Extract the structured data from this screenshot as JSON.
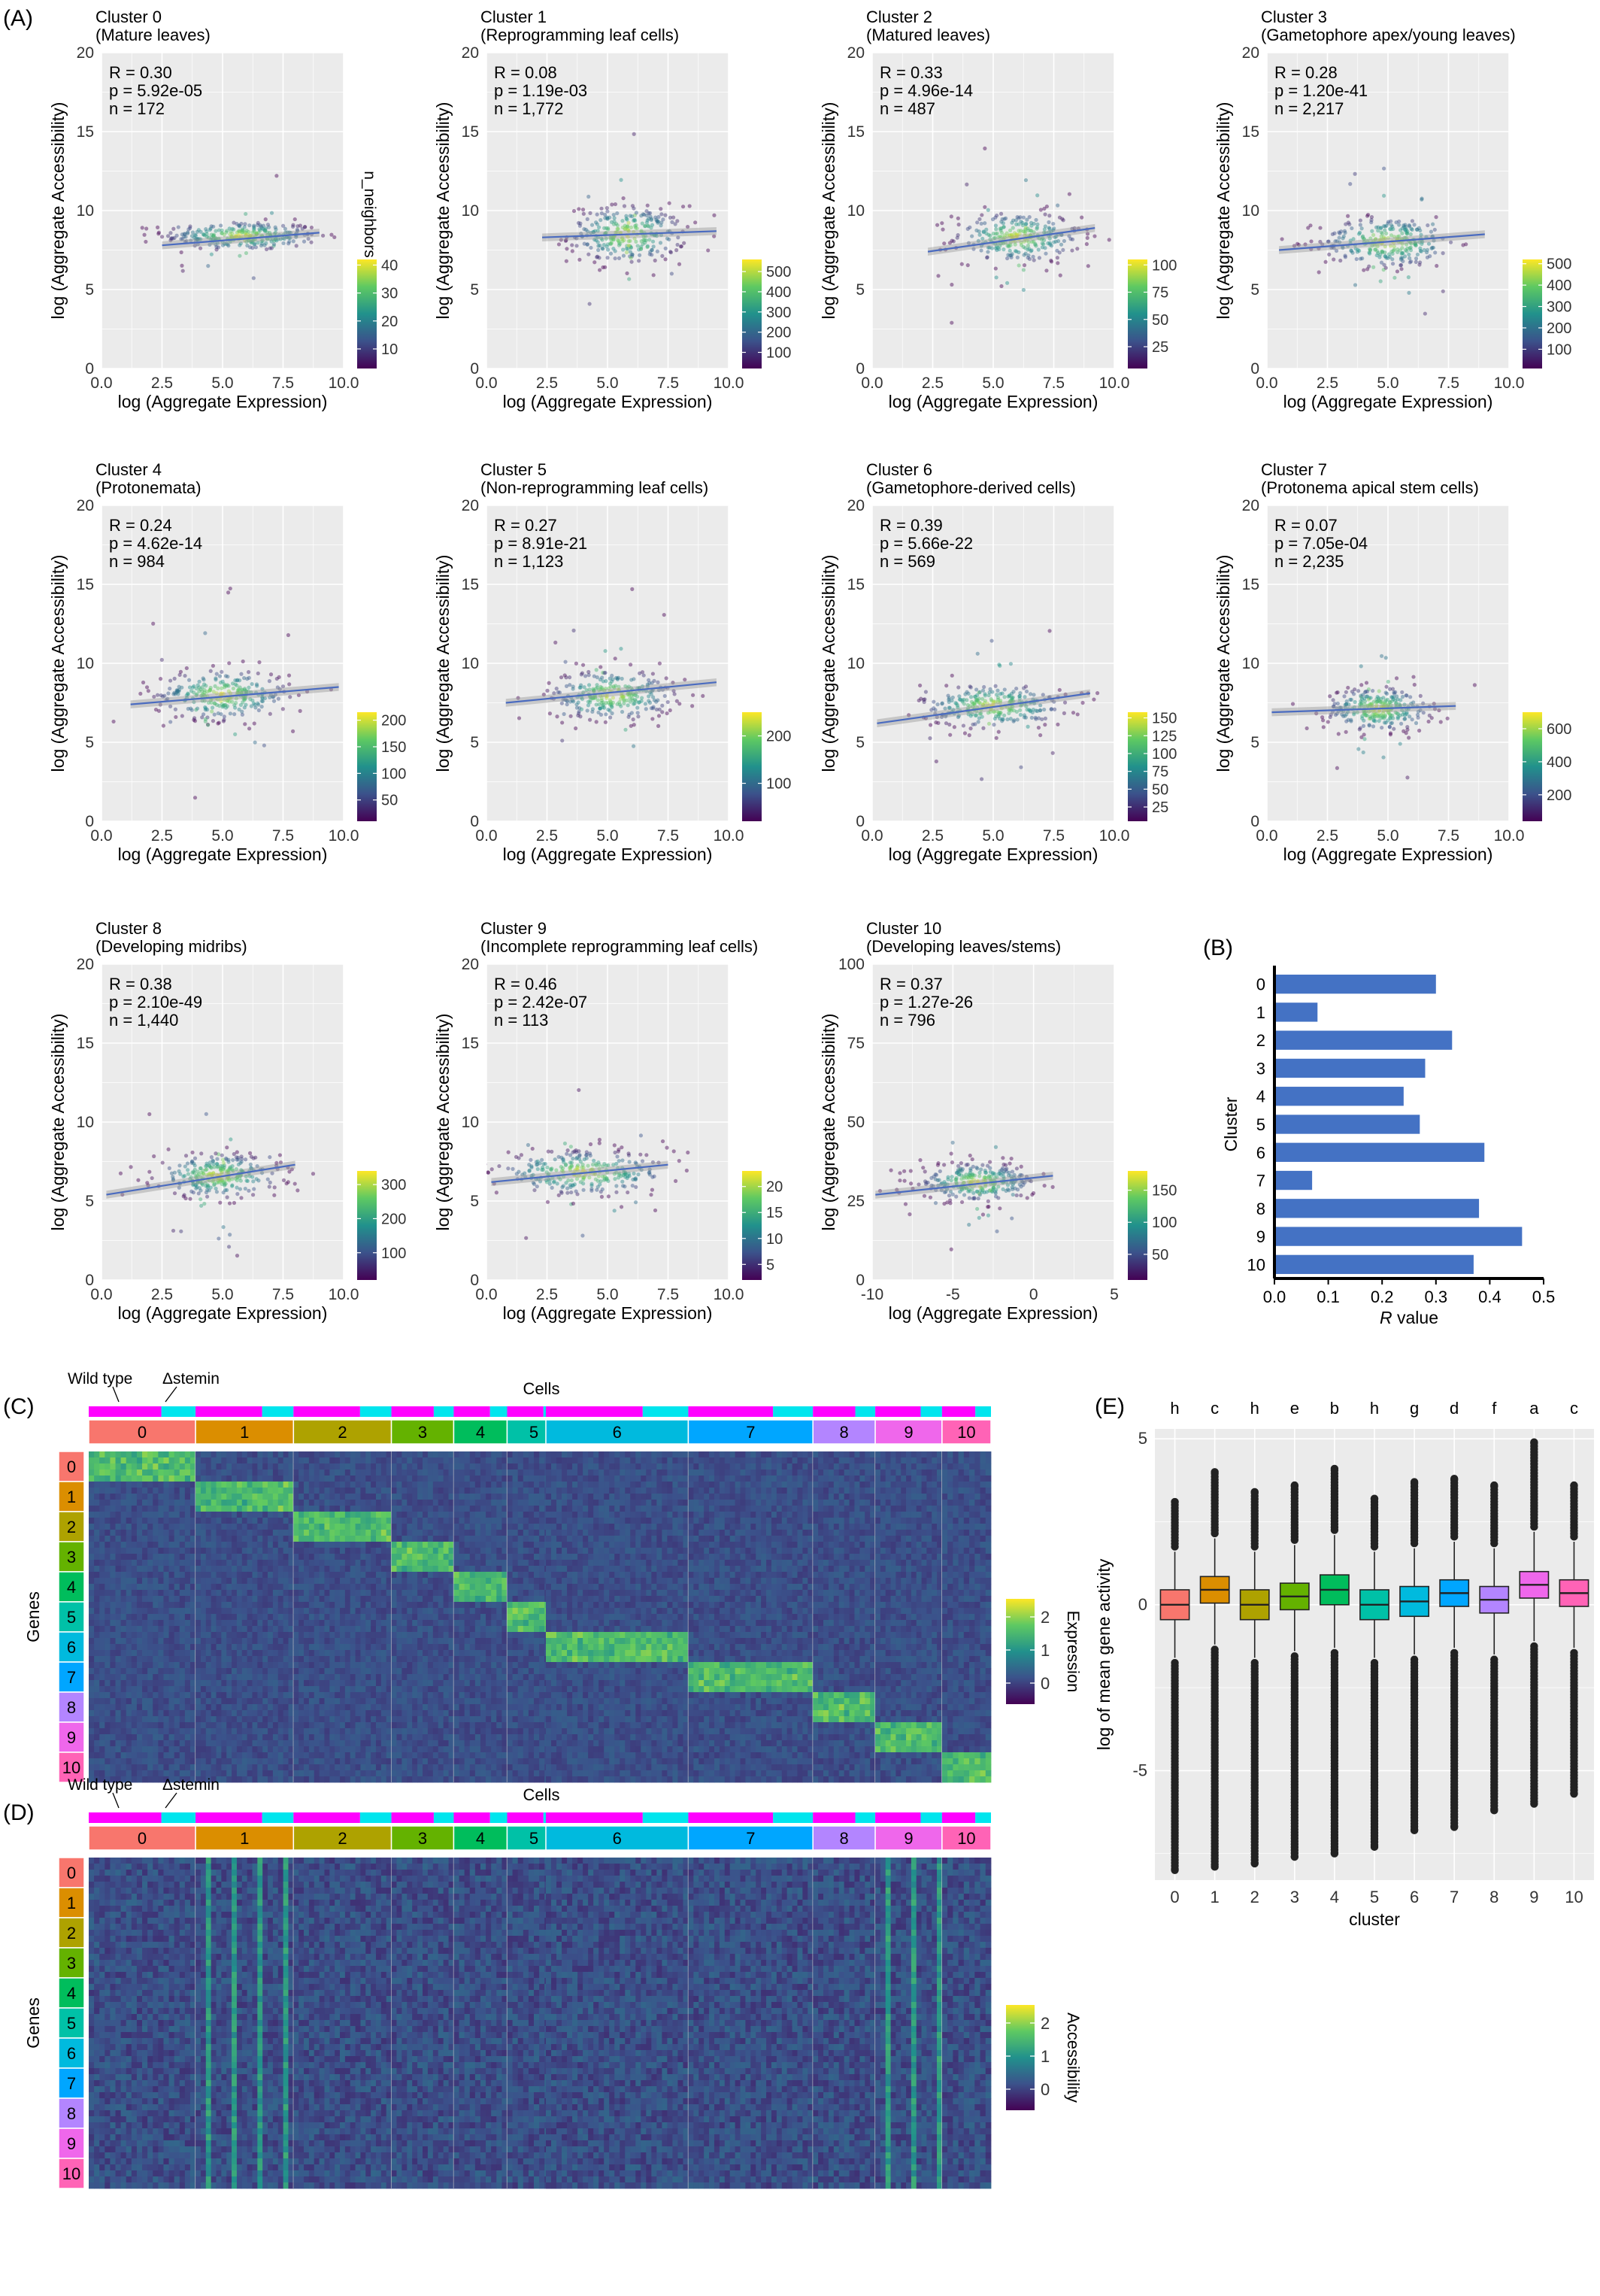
{
  "panel_labels": {
    "A": "(A)",
    "B": "(B)",
    "C": "(C)",
    "D": "(D)",
    "E": "(E)"
  },
  "colors": {
    "panel_bg": "#ebebeb",
    "grid": "#ffffff",
    "reg_line": "#4a6bc0",
    "bar": "#4472c4",
    "heat_low": "#440154",
    "heat_mid": "#21918c",
    "heat_high": "#fde725",
    "wt": "#ff00ff",
    "stemin": "#00e5ee",
    "cluster_colors": [
      "#f8766d",
      "#db8e00",
      "#aea200",
      "#64b200",
      "#00bd5c",
      "#00c1a7",
      "#00bade",
      "#00a6ff",
      "#b385ff",
      "#ef67eb",
      "#ff63b6"
    ]
  },
  "scatter": {
    "x_label": "log (Aggregate Expression)",
    "y_label": "log (Aggregate Accessibility)",
    "legend_title": "n_neighbors",
    "panels": [
      {
        "title": "Cluster 0",
        "subtitle": "(Mature leaves)",
        "r": "R = 0.30",
        "p": "p = 5.92e-05",
        "n": "n = 172",
        "xlim": [
          0,
          10
        ],
        "ylim": [
          0,
          20
        ],
        "xticks": [
          "0.0",
          "2.5",
          "5.0",
          "7.5",
          "10.0"
        ],
        "yticks": [
          "0",
          "5",
          "10",
          "15",
          "20"
        ],
        "legend_ticks": [
          "10",
          "20",
          "30",
          "40"
        ],
        "legend_range": [
          3,
          42
        ],
        "line": [
          [
            2.5,
            7.8
          ],
          [
            9,
            8.6
          ]
        ],
        "center": [
          5.8,
          8.4
        ],
        "spread": [
          1.6,
          0.45
        ],
        "show_legend_title": true
      },
      {
        "title": "Cluster 1",
        "subtitle": "(Reprogramming leaf cells)",
        "r": "R = 0.08",
        "p": "p = 1.19e-03",
        "n": "n = 1,772",
        "xlim": [
          0,
          10
        ],
        "ylim": [
          0,
          20
        ],
        "xticks": [
          "0.0",
          "2.5",
          "5.0",
          "7.5",
          "10.0"
        ],
        "yticks": [
          "0",
          "5",
          "10",
          "15",
          "20"
        ],
        "legend_ticks": [
          "100",
          "200",
          "300",
          "400",
          "500"
        ],
        "legend_range": [
          20,
          560
        ],
        "line": [
          [
            2.3,
            8.3
          ],
          [
            9.5,
            8.7
          ]
        ],
        "center": [
          5.8,
          8.5
        ],
        "spread": [
          1.2,
          0.9
        ],
        "show_legend_title": false
      },
      {
        "title": "Cluster 2",
        "subtitle": "(Matured leaves)",
        "r": "R = 0.33",
        "p": "p = 4.96e-14",
        "n": "n = 487",
        "xlim": [
          0,
          10
        ],
        "ylim": [
          0,
          20
        ],
        "xticks": [
          "0.0",
          "2.5",
          "5.0",
          "7.5",
          "10.0"
        ],
        "yticks": [
          "0",
          "5",
          "10",
          "15",
          "20"
        ],
        "legend_ticks": [
          "25",
          "50",
          "75",
          "100"
        ],
        "legend_range": [
          5,
          105
        ],
        "line": [
          [
            2.3,
            7.4
          ],
          [
            9.2,
            8.9
          ]
        ],
        "center": [
          6,
          8.3
        ],
        "spread": [
          1.3,
          0.8
        ],
        "show_legend_title": false
      },
      {
        "title": "Cluster 3",
        "subtitle": "(Gametophore apex/young leaves)",
        "r": "R = 0.28",
        "p": "p = 1.20e-41",
        "n": "n = 2,217",
        "xlim": [
          0,
          10
        ],
        "ylim": [
          0,
          20
        ],
        "xticks": [
          "0.0",
          "2.5",
          "5.0",
          "7.5",
          "10.0"
        ],
        "yticks": [
          "0",
          "5",
          "10",
          "15",
          "20"
        ],
        "legend_ticks": [
          "100",
          "200",
          "300",
          "400",
          "500"
        ],
        "legend_range": [
          10,
          520
        ],
        "line": [
          [
            0.5,
            7.5
          ],
          [
            9,
            8.5
          ]
        ],
        "center": [
          5,
          8
        ],
        "spread": [
          1.4,
          0.8
        ],
        "show_legend_title": false
      },
      {
        "title": "Cluster 4",
        "subtitle": "(Protonemata)",
        "r": "R = 0.24",
        "p": "p = 4.62e-14",
        "n": "n = 984",
        "xlim": [
          0,
          10
        ],
        "ylim": [
          0,
          20
        ],
        "xticks": [
          "0.0",
          "2.5",
          "5.0",
          "7.5",
          "10.0"
        ],
        "yticks": [
          "0",
          "5",
          "10",
          "15",
          "20"
        ],
        "legend_ticks": [
          "50",
          "100",
          "150",
          "200"
        ],
        "legend_range": [
          10,
          215
        ],
        "line": [
          [
            1.2,
            7.4
          ],
          [
            9.8,
            8.5
          ]
        ],
        "center": [
          5,
          8
        ],
        "spread": [
          1.4,
          0.8
        ],
        "show_legend_title": false
      },
      {
        "title": "Cluster 5",
        "subtitle": "(Non-reprogramming leaf cells)",
        "r": "R = 0.27",
        "p": "p = 8.91e-21",
        "n": "n = 1,123",
        "xlim": [
          0,
          10
        ],
        "ylim": [
          0,
          20
        ],
        "xticks": [
          "0.0",
          "2.5",
          "5.0",
          "7.5",
          "10.0"
        ],
        "yticks": [
          "0",
          "5",
          "10",
          "15",
          "20"
        ],
        "legend_ticks": [
          "100",
          "200"
        ],
        "legend_range": [
          20,
          250
        ],
        "line": [
          [
            0.8,
            7.5
          ],
          [
            9.5,
            8.8
          ]
        ],
        "center": [
          5.2,
          8
        ],
        "spread": [
          1.3,
          0.8
        ],
        "show_legend_title": false
      },
      {
        "title": "Cluster 6",
        "subtitle": "(Gametophore-derived cells)",
        "r": "R = 0.39",
        "p": "p = 5.66e-22",
        "n": "n = 569",
        "xlim": [
          0,
          10
        ],
        "ylim": [
          0,
          20
        ],
        "xticks": [
          "0.0",
          "2.5",
          "5.0",
          "7.5",
          "10.0"
        ],
        "yticks": [
          "0",
          "5",
          "10",
          "15",
          "20"
        ],
        "legend_ticks": [
          "25",
          "50",
          "75",
          "100",
          "125",
          "150"
        ],
        "legend_range": [
          5,
          158
        ],
        "line": [
          [
            0.2,
            6.2
          ],
          [
            9,
            8.1
          ]
        ],
        "center": [
          5,
          7.3
        ],
        "spread": [
          1.5,
          0.7
        ],
        "show_legend_title": false
      },
      {
        "title": "Cluster 7",
        "subtitle": "(Protonema apical stem cells)",
        "r": "R = 0.07",
        "p": "p = 7.05e-04",
        "n": "n = 2,235",
        "xlim": [
          0,
          10
        ],
        "ylim": [
          0,
          20
        ],
        "xticks": [
          "0.0",
          "2.5",
          "5.0",
          "7.5",
          "10.0"
        ],
        "yticks": [
          "0",
          "5",
          "10",
          "15",
          "20"
        ],
        "legend_ticks": [
          "200",
          "400",
          "600"
        ],
        "legend_range": [
          40,
          700
        ],
        "line": [
          [
            0.2,
            6.9
          ],
          [
            7.8,
            7.3
          ]
        ],
        "center": [
          4.6,
          7.1
        ],
        "spread": [
          1.1,
          0.7
        ],
        "show_legend_title": false
      },
      {
        "title": "Cluster 8",
        "subtitle": "(Developing midribs)",
        "r": "R = 0.38",
        "p": "p = 2.10e-49",
        "n": "n = 1,440",
        "xlim": [
          0,
          10
        ],
        "ylim": [
          0,
          20
        ],
        "xticks": [
          "0.0",
          "2.5",
          "5.0",
          "7.5",
          "10.0"
        ],
        "yticks": [
          "0",
          "5",
          "10",
          "15",
          "20"
        ],
        "legend_ticks": [
          "100",
          "200",
          "300"
        ],
        "legend_range": [
          20,
          340
        ],
        "line": [
          [
            0.2,
            5.4
          ],
          [
            8,
            7.3
          ]
        ],
        "center": [
          4.8,
          6.6
        ],
        "spread": [
          1.3,
          0.7
        ],
        "show_legend_title": false
      },
      {
        "title": "Cluster 9",
        "subtitle": "(Incomplete reprogramming leaf cells)",
        "r": "R = 0.46",
        "p": "p = 2.42e-07",
        "n": "n = 113",
        "xlim": [
          0,
          10
        ],
        "ylim": [
          0,
          20
        ],
        "xticks": [
          "0.0",
          "2.5",
          "5.0",
          "7.5",
          "10.0"
        ],
        "yticks": [
          "0",
          "5",
          "10",
          "15",
          "20"
        ],
        "legend_ticks": [
          "5",
          "10",
          "15",
          "20"
        ],
        "legend_range": [
          2,
          23
        ],
        "line": [
          [
            0.2,
            6.2
          ],
          [
            7.5,
            7.3
          ]
        ],
        "center": [
          4,
          6.8
        ],
        "spread": [
          1.8,
          0.7
        ],
        "show_legend_title": false
      },
      {
        "title": "Cluster 10",
        "subtitle": "(Developing leaves/stems)",
        "r": "R = 0.37",
        "p": "p = 1.27e-26",
        "n": "n = 796",
        "xlim": [
          -10,
          5
        ],
        "ylim": [
          0,
          100
        ],
        "xticks": [
          "-10",
          "-5",
          "0",
          "5"
        ],
        "yticks": [
          "0",
          "25",
          "50",
          "75",
          "100"
        ],
        "legend_ticks": [
          "50",
          "100",
          "150"
        ],
        "legend_range": [
          10,
          180
        ],
        "line": [
          [
            -9.8,
            27
          ],
          [
            1.2,
            33
          ]
        ],
        "center": [
          -3.5,
          31
        ],
        "spread": [
          1.8,
          3
        ],
        "show_legend_title": false
      }
    ]
  },
  "chart_data": [
    {
      "type": "bar",
      "orientation": "horizontal",
      "ylabel": "Cluster",
      "xlabel": "R value",
      "categories": [
        "0",
        "1",
        "2",
        "3",
        "4",
        "5",
        "6",
        "7",
        "8",
        "9",
        "10"
      ],
      "values": [
        0.3,
        0.08,
        0.33,
        0.28,
        0.24,
        0.27,
        0.39,
        0.07,
        0.38,
        0.46,
        0.37
      ],
      "xlim": [
        0,
        0.5
      ],
      "xticks": [
        "0.0",
        "0.1",
        "0.2",
        "0.3",
        "0.4",
        "0.5"
      ]
    },
    {
      "type": "box",
      "xlabel": "cluster",
      "ylabel": "log of mean gene activity",
      "categories": [
        "0",
        "1",
        "2",
        "3",
        "4",
        "5",
        "6",
        "7",
        "8",
        "9",
        "10"
      ],
      "letters": [
        "h",
        "c",
        "h",
        "e",
        "b",
        "h",
        "g",
        "d",
        "f",
        "a",
        "c"
      ],
      "median": [
        0.0,
        0.45,
        0.0,
        0.25,
        0.45,
        0.0,
        0.1,
        0.35,
        0.15,
        0.6,
        0.35
      ],
      "q1": [
        -0.45,
        0.05,
        -0.45,
        -0.15,
        0.0,
        -0.45,
        -0.35,
        -0.05,
        -0.25,
        0.2,
        -0.05
      ],
      "q3": [
        0.45,
        0.85,
        0.45,
        0.65,
        0.9,
        0.45,
        0.55,
        0.75,
        0.55,
        1.0,
        0.75
      ],
      "whisker_low": [
        -1.6,
        -1.2,
        -1.6,
        -1.4,
        -1.3,
        -1.6,
        -1.5,
        -1.3,
        -1.5,
        -1.1,
        -1.3
      ],
      "whisker_high": [
        1.6,
        2.0,
        1.6,
        1.8,
        2.1,
        1.6,
        1.7,
        1.9,
        1.7,
        2.2,
        1.9
      ],
      "outlier_min": [
        -8.0,
        -7.9,
        -7.8,
        -7.6,
        -7.5,
        -7.3,
        -6.8,
        -6.7,
        -6.2,
        -6.0,
        -5.7
      ],
      "outlier_max": [
        3.1,
        4.0,
        3.4,
        3.6,
        4.1,
        3.2,
        3.7,
        3.8,
        3.6,
        4.9,
        3.6
      ],
      "ylim": [
        -8.3,
        5.3
      ],
      "yticks": [
        "-5",
        "0",
        "5"
      ]
    }
  ],
  "heatmaps": {
    "C": {
      "cells_title": "Cells",
      "wt_label": "Wild type",
      "stemin_label": "Δstemin",
      "genes_label": "Genes",
      "legend_title": "Expression",
      "legend_ticks": [
        "0",
        "1",
        "2"
      ],
      "col_clusters_left": [
        "0",
        "1",
        "2",
        "3",
        "4",
        "5"
      ],
      "col_clusters_right": [
        "6",
        "7",
        "8",
        "9",
        "10"
      ],
      "row_clusters": [
        "0",
        "1",
        "2",
        "3",
        "4",
        "5",
        "6",
        "7",
        "8",
        "9",
        "10"
      ]
    },
    "D": {
      "cells_title": "Cells",
      "wt_label": "Wild type",
      "stemin_label": "Δstemin",
      "genes_label": "Genes",
      "legend_title": "Accessibility",
      "legend_ticks": [
        "0",
        "1",
        "2"
      ],
      "col_clusters_left": [
        "0",
        "1",
        "2",
        "3",
        "4",
        "5"
      ],
      "col_clusters_right": [
        "6",
        "7",
        "8",
        "9",
        "10"
      ],
      "row_clusters": [
        "0",
        "1",
        "2",
        "3",
        "4",
        "5",
        "6",
        "7",
        "8",
        "9",
        "10"
      ]
    }
  }
}
